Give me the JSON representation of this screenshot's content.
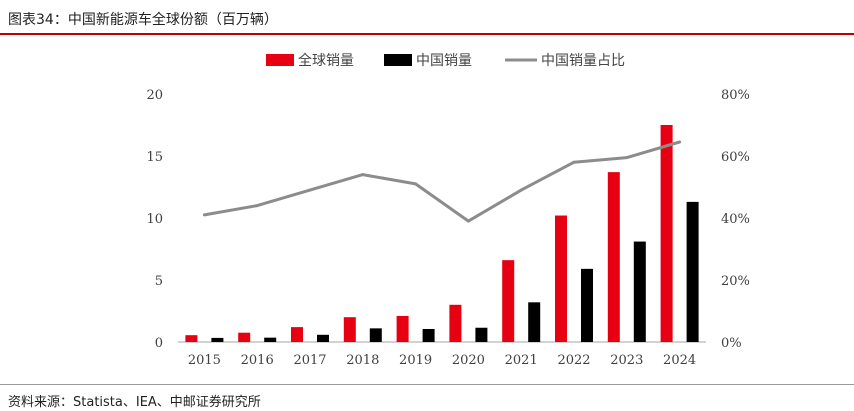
{
  "header": {
    "title": "图表34：中国新能源车全球份额（百万辆）"
  },
  "footer": {
    "source": "资料来源：Statista、IEA、中邮证券研究所"
  },
  "colors": {
    "global": "#e60012",
    "china": "#000000",
    "share": "#8c8c8c",
    "accent": "#c00000"
  },
  "chart_data": {
    "type": "bar",
    "title": "中国新能源车全球份额（百万辆）",
    "categories": [
      "2015",
      "2016",
      "2017",
      "2018",
      "2019",
      "2020",
      "2021",
      "2022",
      "2023",
      "2024"
    ],
    "series": [
      {
        "name": "全球销量",
        "type": "bar",
        "axis": "left",
        "values": [
          0.55,
          0.75,
          1.2,
          2.0,
          2.1,
          3.0,
          6.6,
          10.2,
          13.7,
          17.5
        ]
      },
      {
        "name": "中国销量",
        "type": "bar",
        "axis": "left",
        "values": [
          0.33,
          0.35,
          0.58,
          1.1,
          1.05,
          1.15,
          3.2,
          5.9,
          8.1,
          11.3
        ]
      },
      {
        "name": "中国销量占比",
        "type": "line",
        "axis": "right",
        "values": [
          0.41,
          0.44,
          0.49,
          0.54,
          0.51,
          0.39,
          0.49,
          0.58,
          0.595,
          0.645
        ]
      }
    ],
    "y_left": {
      "min": 0,
      "max": 20,
      "ticks": [
        "0",
        "5",
        "10",
        "15",
        "20"
      ]
    },
    "y_right": {
      "min": 0,
      "max": 0.8,
      "ticks": [
        "0%",
        "20%",
        "40%",
        "60%",
        "80%"
      ]
    },
    "legend": "top-center",
    "grid": false
  }
}
